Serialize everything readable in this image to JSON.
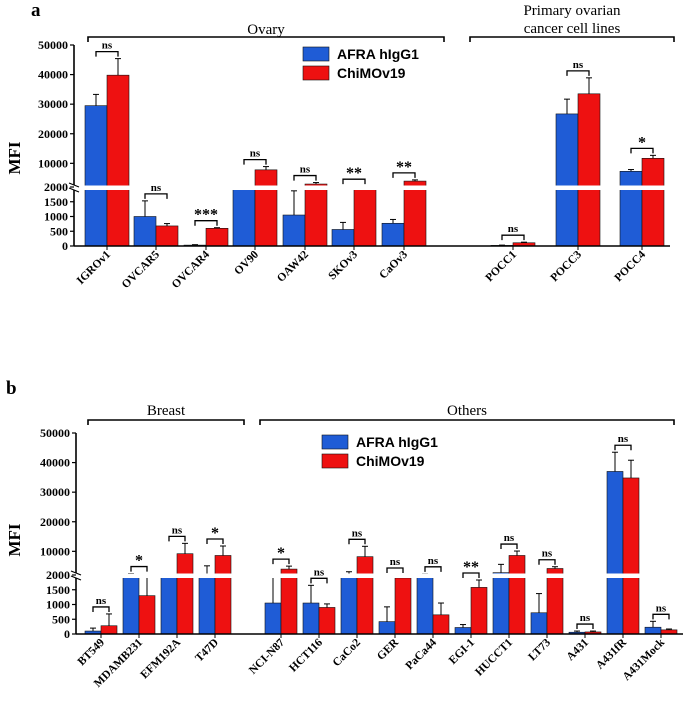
{
  "colors": {
    "afra": "#1f5cd6",
    "chimov": "#ee1111",
    "axis": "#000000"
  },
  "chart_data": [
    {
      "panel": "a",
      "type": "bar",
      "ylabel": "MFI",
      "axis": {
        "broken": true,
        "lower_range": [
          0,
          2000
        ],
        "upper_range": [
          2000,
          50000
        ],
        "lower_ticks": [
          "0",
          "500",
          "1000",
          "1500",
          "2000"
        ],
        "upper_ticks": [
          "10000",
          "20000",
          "30000",
          "40000",
          "50000"
        ]
      },
      "groups": [
        {
          "label": "Ovary",
          "categories": [
            "IGROv1",
            "OVCAR5",
            "OVCAR4",
            "OV90",
            "OAW42",
            "SKOv3",
            "CaOv3"
          ]
        },
        {
          "label": "Primary ovarian cancer cell lines",
          "label_lines": [
            "Primary ovarian",
            "cancer cell lines"
          ],
          "categories": [
            "POCC1",
            "POCC3",
            "POCC4"
          ]
        }
      ],
      "categories": [
        "IGROv1",
        "OVCAR5",
        "OVCAR4",
        "OV90",
        "OAW42",
        "SKOv3",
        "CaOv3",
        "POCC1",
        "POCC3",
        "POCC4"
      ],
      "series": [
        {
          "name": "AFRA hIgG1",
          "values": [
            29500,
            1000,
            30,
            2200,
            1050,
            560,
            770,
            20,
            26700,
            7300
          ],
          "errors": [
            3800,
            530,
            15,
            100,
            820,
            240,
            130,
            10,
            5000,
            600
          ]
        },
        {
          "name": "ChiMOv19",
          "values": [
            39800,
            680,
            600,
            7800,
            3000,
            2200,
            4000,
            110,
            33500,
            11700
          ],
          "errors": [
            5600,
            80,
            20,
            1100,
            500,
            80,
            400,
            20,
            5400,
            1000
          ]
        }
      ],
      "significance": [
        "ns",
        "ns",
        "***",
        "ns",
        "ns",
        "**",
        "**",
        "ns",
        "ns",
        "*"
      ]
    },
    {
      "panel": "b",
      "type": "bar",
      "ylabel": "MFI",
      "axis": {
        "broken": true,
        "lower_range": [
          0,
          2000
        ],
        "upper_range": [
          2000,
          50000
        ],
        "lower_ticks": [
          "0",
          "500",
          "1000",
          "1500",
          "2000"
        ],
        "upper_ticks": [
          "10000",
          "20000",
          "30000",
          "40000",
          "50000"
        ]
      },
      "groups": [
        {
          "label": "Breast",
          "categories": [
            "BT549",
            "MDAMB231",
            "EFM192A",
            "T47D"
          ]
        },
        {
          "label": "Others",
          "categories": [
            "NCI-N87",
            "HCT116",
            "CaCo2",
            "GER",
            "PaCa44",
            "EGI-1",
            "HUCCT1",
            "LT73",
            "A431",
            "A431fR",
            "A431Mock"
          ]
        }
      ],
      "categories": [
        "BT549",
        "MDAMB231",
        "EFM192A",
        "T47D",
        "NCI-N87",
        "HCT116",
        "CaCo2",
        "GER",
        "PaCa44",
        "EGI-1",
        "HUCCT1",
        "LT73",
        "A431",
        "A431fR",
        "A431Mock"
      ],
      "series": [
        {
          "name": "AFRA hIgG1",
          "values": [
            100,
            2300,
            2000,
            2300,
            1050,
            1050,
            2300,
            420,
            2200,
            220,
            2800,
            720,
            60,
            37000,
            230
          ],
          "errors": [
            100,
            180,
            200,
            2800,
            1000,
            600,
            800,
            500,
            200,
            100,
            2800,
            650,
            40,
            6500,
            200
          ]
        },
        {
          "name": "ChiMOv19",
          "values": [
            280,
            1300,
            9200,
            8600,
            4000,
            900,
            8200,
            1900,
            650,
            1580,
            8600,
            4200,
            70,
            34800,
            140
          ],
          "errors": [
            400,
            700,
            3500,
            3200,
            1000,
            120,
            3500,
            100,
            400,
            250,
            1500,
            600,
            30,
            6000,
            30
          ]
        }
      ],
      "significance": [
        "ns",
        "*",
        "ns",
        "*",
        "*",
        "ns",
        "ns",
        "ns",
        "ns",
        "**",
        "ns",
        "ns",
        "ns",
        "ns",
        "ns"
      ]
    }
  ]
}
